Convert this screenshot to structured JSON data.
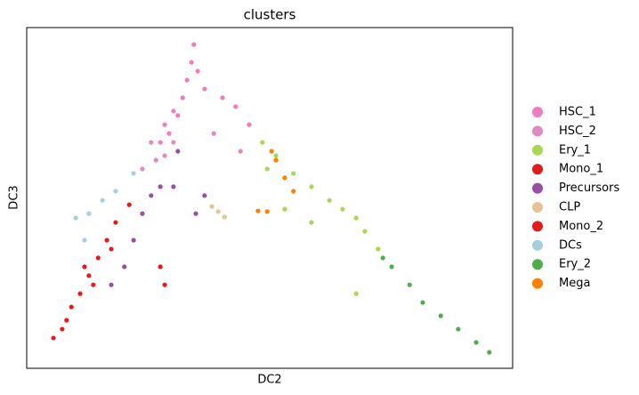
{
  "chart_data": {
    "type": "scatter",
    "title": "clusters",
    "x_label": "DC2",
    "y_label": "DC3",
    "xlim": [
      0,
      100
    ],
    "ylim": [
      0,
      100
    ],
    "series": [
      {
        "name": "HSC_1",
        "color": "#f07cc0",
        "x": [
          34.4,
          33.9,
          33.0,
          32.1,
          31.1,
          29.3,
          27.5,
          35.2,
          36.6,
          40.3,
          43.0,
          45.8,
          30.2,
          28.4
        ],
        "y": [
          95.0,
          89.8,
          84.6,
          79.4,
          74.2,
          68.9,
          66.3,
          87.2,
          82.0,
          79.4,
          76.8,
          71.5,
          75.5,
          71.5
        ]
      },
      {
        "name": "HSC_2",
        "color": "#e08ac4",
        "x": [
          25.6,
          26.6,
          28.4,
          23.8,
          30.2,
          38.5,
          44.0
        ],
        "y": [
          66.3,
          61.1,
          62.4,
          58.5,
          66.3,
          68.9,
          63.7
        ]
      },
      {
        "name": "Ery_1",
        "color": "#a6d854",
        "x": [
          48.5,
          51.3,
          54.9,
          58.6,
          62.3,
          65.0,
          67.8,
          69.6,
          72.3,
          53.1,
          58.6,
          49.5,
          67.8
        ],
        "y": [
          66.3,
          62.4,
          57.2,
          53.3,
          49.3,
          46.7,
          44.1,
          40.2,
          35.0,
          46.7,
          42.8,
          58.5,
          21.9
        ]
      },
      {
        "name": "Mono_1",
        "color": "#e41a1c",
        "x": [
          5.5,
          8.2,
          11.0,
          12.8,
          14.7,
          16.5,
          18.3,
          21.1,
          9.2,
          11.9
        ],
        "y": [
          8.9,
          14.1,
          21.9,
          27.2,
          32.4,
          37.6,
          42.8,
          48.0,
          18.0,
          29.8
        ]
      },
      {
        "name": "Precursors",
        "color": "#984ea3",
        "x": [
          27.5,
          25.6,
          30.2,
          23.8,
          22.0,
          20.1,
          17.4,
          31.1,
          36.6,
          34.8
        ],
        "y": [
          53.3,
          50.7,
          53.3,
          45.4,
          37.6,
          29.8,
          24.5,
          63.7,
          50.7,
          45.4
        ]
      },
      {
        "name": "CLP",
        "color": "#e5c494",
        "x": [
          38.1,
          39.4,
          40.7
        ],
        "y": [
          47.5,
          46.0,
          44.4
        ]
      },
      {
        "name": "Mono_2",
        "color": "#e41a1c",
        "x": [
          7.3,
          13.7,
          17.4,
          28.4,
          27.5
        ],
        "y": [
          11.5,
          24.5,
          35.0,
          24.5,
          29.8
        ]
      },
      {
        "name": "DCs",
        "color": "#a6cee3",
        "x": [
          10.1,
          12.8,
          11.9,
          15.6,
          22.0,
          18.3
        ],
        "y": [
          44.1,
          45.4,
          37.6,
          49.3,
          57.2,
          52.0
        ]
      },
      {
        "name": "Ery_2",
        "color": "#4daf4a",
        "x": [
          75.1,
          78.8,
          81.5,
          85.2,
          88.8,
          92.5,
          95.2,
          73.3
        ],
        "y": [
          29.8,
          24.5,
          19.3,
          15.4,
          11.5,
          7.6,
          4.7,
          32.4
        ]
      },
      {
        "name": "Mega",
        "color": "#ff7f00",
        "x": [
          50.4,
          53.1,
          54.9,
          47.6,
          49.5,
          51.3
        ],
        "y": [
          63.7,
          55.9,
          52.0,
          46.2,
          46.0,
          61.1
        ]
      }
    ],
    "legend": "right"
  }
}
